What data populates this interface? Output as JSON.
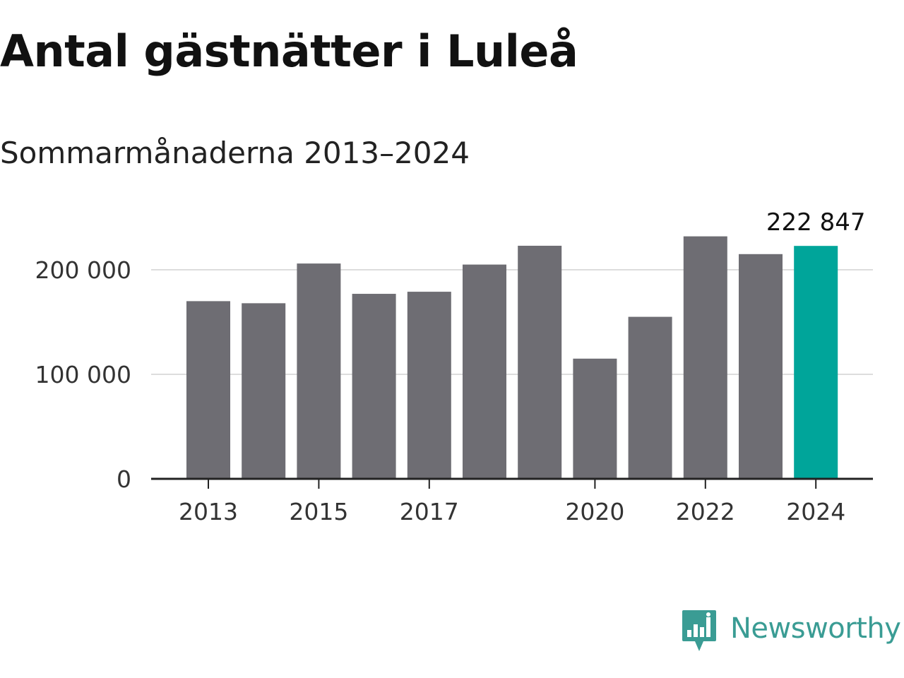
{
  "chart_data": {
    "type": "bar",
    "title": "Antal gästnätter i Luleå",
    "subtitle": "Sommarmånaderna 2013–2024",
    "xlabel": "",
    "ylabel": "",
    "categories": [
      "2013",
      "2014",
      "2015",
      "2016",
      "2017",
      "2018",
      "2019",
      "2020",
      "2021",
      "2022",
      "2023",
      "2024"
    ],
    "values": [
      170000,
      168000,
      206000,
      177000,
      179000,
      205000,
      223000,
      115000,
      155000,
      232000,
      215000,
      222847
    ],
    "ylim": [
      0,
      240000
    ],
    "y_ticks": [
      {
        "value": 0,
        "label": "0"
      },
      {
        "value": 100000,
        "label": "100 000"
      },
      {
        "value": 200000,
        "label": "200 000"
      }
    ],
    "x_tick_labels": [
      "2013",
      "2015",
      "2017",
      "2020",
      "2022",
      "2024"
    ],
    "highlight": {
      "category": "2024",
      "label": "222 847"
    },
    "colors": {
      "bar": "#6e6d73",
      "highlight": "#00a59a",
      "grid": "#dddddd",
      "axis": "#222222"
    },
    "grid": true,
    "legend": "none"
  },
  "branding": {
    "logo_text": "Newsworthy",
    "logo_icon": "bar-chart-speech-bubble-icon",
    "logo_color": "#3a9c94"
  }
}
